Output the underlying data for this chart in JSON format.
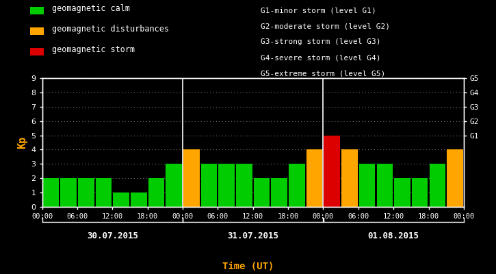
{
  "xlabel": "Time (UT)",
  "ylabel": "Kp",
  "background_color": "#000000",
  "text_color": "#ffffff",
  "orange_color": "#ffa500",
  "green_color": "#00cc00",
  "red_color": "#dd0000",
  "ylim": [
    0,
    9
  ],
  "yticks": [
    0,
    1,
    2,
    3,
    4,
    5,
    6,
    7,
    8,
    9
  ],
  "days": [
    "30.07.2015",
    "31.07.2015",
    "01.08.2015"
  ],
  "bar_values": [
    2,
    2,
    2,
    2,
    1,
    1,
    2,
    3,
    4,
    3,
    3,
    3,
    2,
    2,
    3,
    4,
    5,
    4,
    3,
    3,
    2,
    2,
    3,
    4
  ],
  "bar_colors": [
    "#00cc00",
    "#00cc00",
    "#00cc00",
    "#00cc00",
    "#00cc00",
    "#00cc00",
    "#00cc00",
    "#00cc00",
    "#ffa500",
    "#00cc00",
    "#00cc00",
    "#00cc00",
    "#00cc00",
    "#00cc00",
    "#00cc00",
    "#ffa500",
    "#dd0000",
    "#ffa500",
    "#00cc00",
    "#00cc00",
    "#00cc00",
    "#00cc00",
    "#00cc00",
    "#ffa500"
  ],
  "tick_labels": [
    "00:00",
    "06:00",
    "12:00",
    "18:00",
    "00:00",
    "06:00",
    "12:00",
    "18:00",
    "00:00",
    "06:00",
    "12:00",
    "18:00",
    "00:00"
  ],
  "tick_positions": [
    0,
    2,
    4,
    6,
    8,
    10,
    12,
    14,
    16,
    18,
    20,
    22,
    24
  ],
  "day_dividers": [
    8,
    16
  ],
  "legend_items": [
    {
      "label": "geomagnetic calm",
      "color": "#00cc00"
    },
    {
      "label": "geomagnetic disturbances",
      "color": "#ffa500"
    },
    {
      "label": "geomagnetic storm",
      "color": "#dd0000"
    }
  ],
  "g_labels": [
    "G1-minor storm (level G1)",
    "G2-moderate storm (level G2)",
    "G3-strong storm (level G3)",
    "G4-severe storm (level G4)",
    "G5-extreme storm (level G5)"
  ],
  "grid_yticks": [
    1,
    2,
    3,
    4,
    5,
    6,
    7,
    8,
    9
  ]
}
